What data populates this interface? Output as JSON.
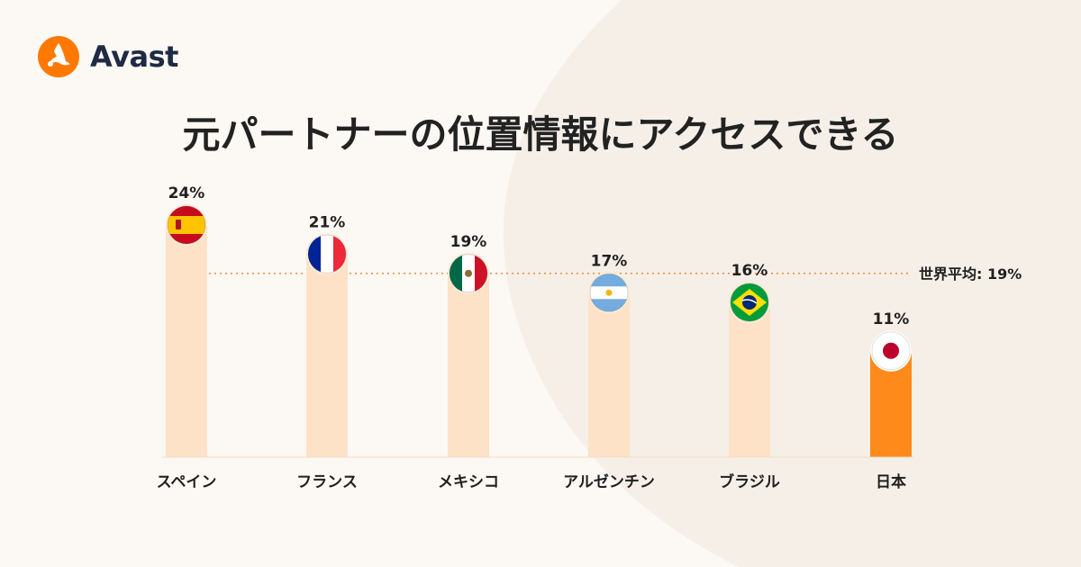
{
  "brand": {
    "name": "Avast",
    "logo_icon": "avast-logo-icon",
    "accent_color": "#ff7800"
  },
  "title": "元パートナーの位置情報にアクセスできる",
  "chart_data": {
    "type": "bar",
    "categories": [
      "スペイン",
      "フランス",
      "メキシコ",
      "アルゼンチン",
      "ブラジル",
      "日本"
    ],
    "values": [
      24,
      21,
      19,
      17,
      16,
      11
    ],
    "value_labels": [
      "24%",
      "21%",
      "19%",
      "17%",
      "16%",
      "11%"
    ],
    "flags": [
      "spain-flag-icon",
      "france-flag-icon",
      "mexico-flag-icon",
      "argentina-flag-icon",
      "brazil-flag-icon",
      "japan-flag-icon"
    ],
    "highlight_category": "日本",
    "reference_line": {
      "value": 19,
      "label": "世界平均: 19%"
    },
    "ylim": [
      0,
      24
    ],
    "colors": {
      "bar": "#fde2c8",
      "highlight": "#ff8a1c",
      "reference": "#f08a32"
    },
    "grid": false
  }
}
